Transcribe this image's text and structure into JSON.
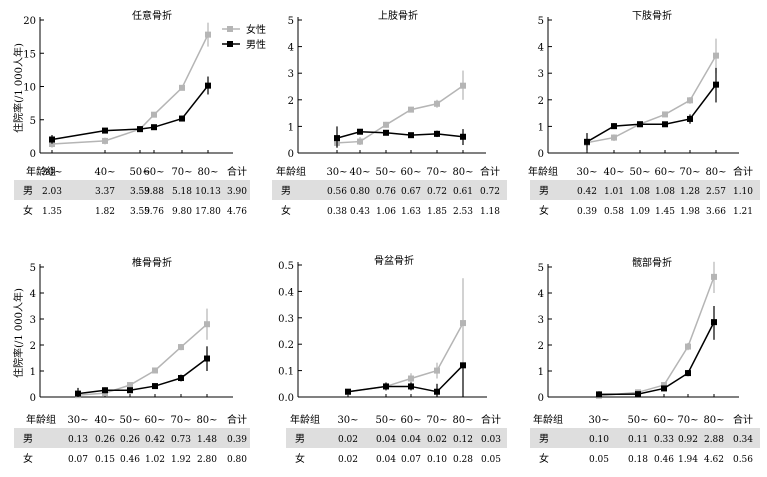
{
  "legend": {
    "female": "女性",
    "male": "男性"
  },
  "colors": {
    "female": "#b5b5b5",
    "male": "#000000",
    "row_male_bg": "#dedede"
  },
  "ylabel": "住院率(/1 000人年)",
  "chart_data": [
    {
      "type": "line",
      "title": "任意骨折",
      "categories": [
        "30~",
        "40~",
        "50~",
        "60~",
        "70~",
        "80~"
      ],
      "total_label": "合计",
      "ylim": [
        0,
        20
      ],
      "yticks": [
        "0",
        "5",
        "10",
        "15",
        "20"
      ],
      "series": [
        {
          "name": "女性",
          "values": [
            1.35,
            1.82,
            3.59,
            5.76,
            9.8,
            17.8
          ],
          "ci": [
            [
              0.8,
              1.9
            ],
            [
              1.3,
              2.3
            ],
            [
              3.3,
              3.9
            ],
            [
              5.4,
              6.1
            ],
            [
              9.4,
              10.2
            ],
            [
              16.0,
              19.6
            ]
          ]
        },
        {
          "name": "男性",
          "values": [
            2.03,
            3.37,
            3.59,
            3.88,
            5.18,
            10.13
          ],
          "ci": [
            [
              1.4,
              2.7
            ],
            [
              3.0,
              3.7
            ],
            [
              3.3,
              3.9
            ],
            [
              3.6,
              4.2
            ],
            [
              4.8,
              5.6
            ],
            [
              8.8,
              11.5
            ]
          ]
        }
      ],
      "table": {
        "label": "年龄组",
        "rows": [
          {
            "label": "男",
            "values": [
              "2.03",
              "3.37",
              "3.59",
              "3.88",
              "5.18",
              "10.13",
              "3.90"
            ]
          },
          {
            "label": "女",
            "values": [
              "1.35",
              "1.82",
              "3.59",
              "5.76",
              "9.80",
              "17.80",
              "4.76"
            ]
          }
        ]
      }
    },
    {
      "type": "line",
      "title": "上肢骨折",
      "categories": [
        "30~",
        "40~",
        "50~",
        "60~",
        "70~",
        "80~"
      ],
      "total_label": "合计",
      "ylim": [
        0,
        5
      ],
      "yticks": [
        "0",
        "1",
        "2",
        "3",
        "4",
        "5"
      ],
      "series": [
        {
          "name": "女性",
          "values": [
            0.38,
            0.43,
            1.06,
            1.63,
            1.85,
            2.53
          ],
          "ci": [
            [
              0.2,
              0.6
            ],
            [
              0.3,
              0.6
            ],
            [
              0.95,
              1.17
            ],
            [
              1.55,
              1.71
            ],
            [
              1.7,
              2.0
            ],
            [
              2.0,
              3.1
            ]
          ]
        },
        {
          "name": "男性",
          "values": [
            0.56,
            0.8,
            0.76,
            0.67,
            0.72,
            0.61
          ],
          "ci": [
            [
              0.2,
              1.0
            ],
            [
              0.7,
              0.9
            ],
            [
              0.7,
              0.82
            ],
            [
              0.6,
              0.74
            ],
            [
              0.6,
              0.84
            ],
            [
              0.3,
              0.9
            ]
          ]
        }
      ],
      "table": {
        "label": "年龄组",
        "rows": [
          {
            "label": "男",
            "values": [
              "0.56",
              "0.80",
              "0.76",
              "0.67",
              "0.72",
              "0.61",
              "0.72"
            ]
          },
          {
            "label": "女",
            "values": [
              "0.38",
              "0.43",
              "1.06",
              "1.63",
              "1.85",
              "2.53",
              "1.18"
            ]
          }
        ]
      }
    },
    {
      "type": "line",
      "title": "下肢骨折",
      "categories": [
        "30~",
        "40~",
        "50~",
        "60~",
        "70~",
        "80~"
      ],
      "total_label": "合计",
      "ylim": [
        0,
        5
      ],
      "yticks": [
        "0",
        "1",
        "2",
        "3",
        "4",
        "5"
      ],
      "series": [
        {
          "name": "女性",
          "values": [
            0.39,
            0.58,
            1.09,
            1.45,
            1.98,
            3.66
          ],
          "ci": [
            [
              0.25,
              0.55
            ],
            [
              0.45,
              0.7
            ],
            [
              1.0,
              1.18
            ],
            [
              1.37,
              1.53
            ],
            [
              1.85,
              2.1
            ],
            [
              3.0,
              4.3
            ]
          ]
        },
        {
          "name": "男性",
          "values": [
            0.42,
            1.01,
            1.08,
            1.08,
            1.28,
            2.57
          ],
          "ci": [
            [
              0.1,
              0.75
            ],
            [
              0.9,
              1.12
            ],
            [
              1.0,
              1.16
            ],
            [
              1.0,
              1.16
            ],
            [
              1.1,
              1.45
            ],
            [
              1.9,
              3.2
            ]
          ]
        }
      ],
      "table": {
        "label": "年龄组",
        "rows": [
          {
            "label": "男",
            "values": [
              "0.42",
              "1.01",
              "1.08",
              "1.08",
              "1.28",
              "2.57",
              "1.10"
            ]
          },
          {
            "label": "女",
            "values": [
              "0.39",
              "0.58",
              "1.09",
              "1.45",
              "1.98",
              "3.66",
              "1.21"
            ]
          }
        ]
      }
    },
    {
      "type": "line",
      "title": "椎骨骨折",
      "categories": [
        "30~",
        "40~",
        "50~",
        "60~",
        "70~",
        "80~"
      ],
      "total_label": "合计",
      "ylim": [
        0,
        5
      ],
      "yticks": [
        "0",
        "1",
        "2",
        "3",
        "4",
        "5"
      ],
      "series": [
        {
          "name": "女性",
          "values": [
            0.07,
            0.15,
            0.46,
            1.02,
            1.92,
            2.8
          ],
          "ci": [
            [
              0.0,
              0.15
            ],
            [
              0.05,
              0.25
            ],
            [
              0.38,
              0.54
            ],
            [
              0.95,
              1.09
            ],
            [
              1.8,
              2.04
            ],
            [
              2.2,
              3.4
            ]
          ]
        },
        {
          "name": "男性",
          "values": [
            0.13,
            0.26,
            0.26,
            0.42,
            0.73,
            1.48
          ],
          "ci": [
            [
              0.0,
              0.35
            ],
            [
              0.15,
              0.37
            ],
            [
              0.2,
              0.32
            ],
            [
              0.35,
              0.49
            ],
            [
              0.6,
              0.86
            ],
            [
              1.0,
              1.95
            ]
          ]
        }
      ],
      "table": {
        "label": "年龄组",
        "rows": [
          {
            "label": "男",
            "values": [
              "0.13",
              "0.26",
              "0.26",
              "0.42",
              "0.73",
              "1.48",
              "0.39"
            ]
          },
          {
            "label": "女",
            "values": [
              "0.07",
              "0.15",
              "0.46",
              "1.02",
              "1.92",
              "2.80",
              "0.80"
            ]
          }
        ]
      }
    },
    {
      "type": "line",
      "title": "骨盆骨折",
      "categories": [
        "30~",
        "50~",
        "60~",
        "70~",
        "80~"
      ],
      "total_label": "合计",
      "ylim": [
        0,
        0.5
      ],
      "yticks": [
        "0.0",
        "0.1",
        "0.2",
        "0.3",
        "0.4",
        "0.5"
      ],
      "series": [
        {
          "name": "女性",
          "values": [
            0.02,
            0.04,
            0.07,
            0.1,
            0.28
          ],
          "ci": [
            [
              0.01,
              0.03
            ],
            [
              0.03,
              0.05
            ],
            [
              0.05,
              0.09
            ],
            [
              0.07,
              0.13
            ],
            [
              0.12,
              0.45
            ]
          ]
        },
        {
          "name": "男性",
          "values": [
            0.02,
            0.04,
            0.04,
            0.02,
            0.12
          ],
          "ci": [
            [
              0.01,
              0.03
            ],
            [
              0.025,
              0.055
            ],
            [
              0.025,
              0.055
            ],
            [
              0.0,
              0.05
            ],
            [
              0.0,
              0.12
            ]
          ]
        }
      ],
      "table": {
        "label": "年龄组",
        "rows": [
          {
            "label": "男",
            "values": [
              "0.02",
              "0.04",
              "0.04",
              "0.02",
              "0.12",
              "0.03"
            ]
          },
          {
            "label": "女",
            "values": [
              "0.02",
              "0.04",
              "0.07",
              "0.10",
              "0.28",
              "0.05"
            ]
          }
        ]
      }
    },
    {
      "type": "line",
      "title": "髋部骨折",
      "categories": [
        "30~",
        "50~",
        "60~",
        "70~",
        "80~"
      ],
      "total_label": "合计",
      "ylim": [
        0,
        5
      ],
      "yticks": [
        "0",
        "1",
        "2",
        "3",
        "4",
        "5"
      ],
      "series": [
        {
          "name": "女性",
          "values": [
            0.05,
            0.18,
            0.46,
            1.94,
            4.62
          ],
          "ci": [
            [
              0.0,
              0.12
            ],
            [
              0.1,
              0.26
            ],
            [
              0.38,
              0.54
            ],
            [
              1.8,
              2.08
            ],
            [
              4.0,
              5.2
            ]
          ]
        },
        {
          "name": "男性",
          "values": [
            0.1,
            0.11,
            0.33,
            0.92,
            2.88
          ],
          "ci": [
            [
              0.0,
              0.22
            ],
            [
              0.05,
              0.17
            ],
            [
              0.26,
              0.4
            ],
            [
              0.8,
              1.04
            ],
            [
              2.2,
              3.5
            ]
          ]
        }
      ],
      "table": {
        "label": "年龄组",
        "rows": [
          {
            "label": "男",
            "values": [
              "0.10",
              "0.11",
              "0.33",
              "0.92",
              "2.88",
              "0.34"
            ]
          },
          {
            "label": "女",
            "values": [
              "0.05",
              "0.18",
              "0.46",
              "1.94",
              "4.62",
              "0.56"
            ]
          }
        ]
      }
    }
  ]
}
